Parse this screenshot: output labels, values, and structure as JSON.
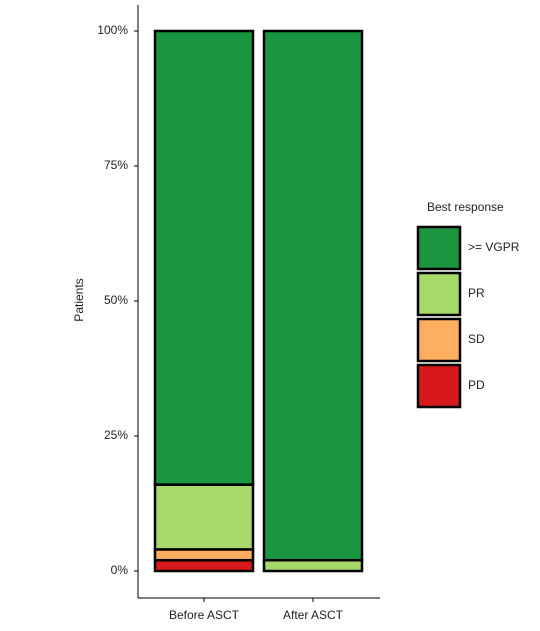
{
  "chart_data": {
    "type": "stacked_bar",
    "categories": [
      "Before ASCT",
      "After ASCT"
    ],
    "y_label": "Patients",
    "legend_title": "Best response",
    "series": [
      {
        "name": ">= VGPR",
        "color": "#1a9641",
        "values": [
          84,
          98
        ]
      },
      {
        "name": "PR",
        "color": "#a6d96a",
        "values": [
          12,
          2
        ]
      },
      {
        "name": "SD",
        "color": "#fdae61",
        "values": [
          2,
          0
        ]
      },
      {
        "name": "PD",
        "color": "#d7191c",
        "values": [
          2,
          0
        ]
      }
    ],
    "ylim": [
      0,
      100
    ],
    "yticks": [
      {
        "value": 0,
        "label": "0%"
      },
      {
        "value": 25,
        "label": "25%"
      },
      {
        "value": 50,
        "label": "50%"
      },
      {
        "value": 75,
        "label": "75%"
      },
      {
        "value": 100,
        "label": "100%"
      }
    ],
    "grid": false,
    "legend_position": "right"
  }
}
